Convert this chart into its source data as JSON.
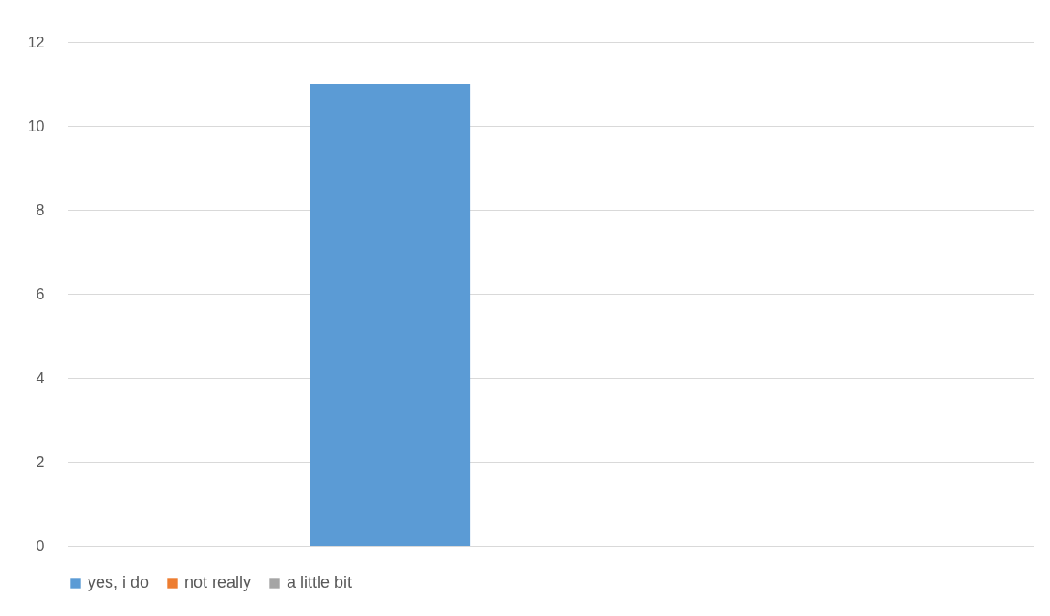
{
  "chart_data": {
    "type": "bar",
    "categories": [
      null
    ],
    "series": [
      {
        "name": "yes, i do",
        "color": "#5b9bd5",
        "values": [
          11
        ]
      },
      {
        "name": "not really",
        "color": "#ed7d31",
        "values": [
          0
        ]
      },
      {
        "name": "a little bit",
        "color": "#a5a5a5",
        "values": [
          0
        ]
      }
    ],
    "ylim": [
      0,
      12
    ],
    "yticks": [
      0,
      2,
      4,
      6,
      8,
      10,
      12
    ],
    "grid": "y",
    "legend": "bottom"
  }
}
